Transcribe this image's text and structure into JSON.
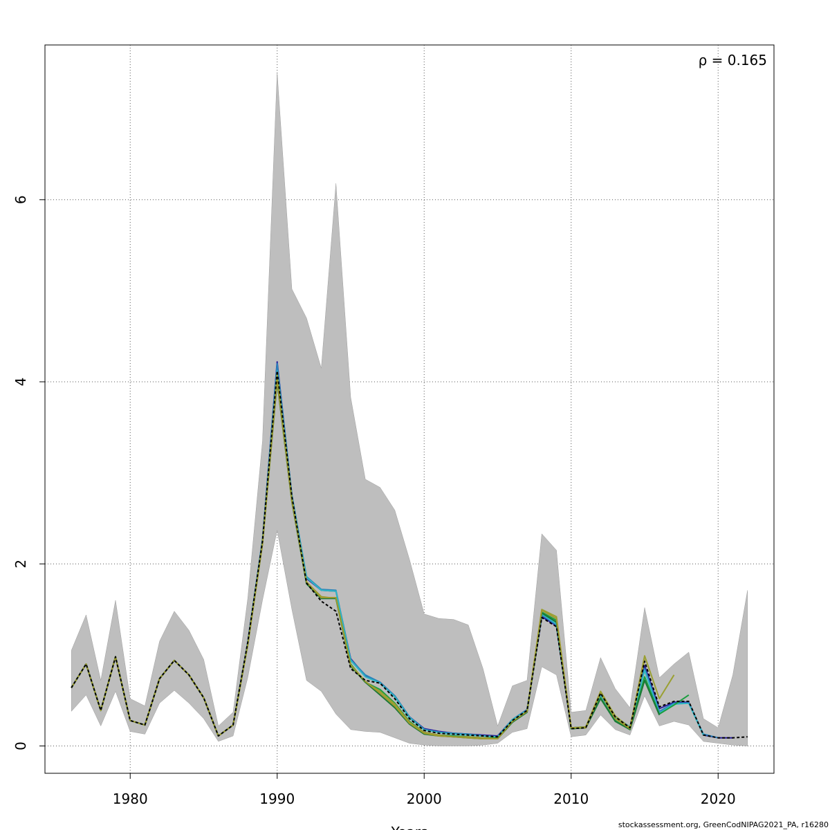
{
  "chart_data": {
    "type": "line",
    "xlabel": "Years",
    "ylabel": "",
    "xlim": [
      1974.2,
      2023.8
    ],
    "ylim": [
      -0.3,
      7.7
    ],
    "x_ticks": [
      1980,
      1990,
      2000,
      2010,
      2020
    ],
    "y_ticks": [
      0,
      2,
      4,
      6
    ],
    "grid": true,
    "annotation": "ρ = 0.165",
    "credit": "stockassessment.org, GreenCodNIPAG2021_PA, r16280",
    "colors": {
      "band": "#bebebe",
      "band_line": "#9e9e9e",
      "peel_1": "#2a1fa0",
      "peel_2": "#2b83ba",
      "peel_3": "#2fb7c4",
      "peel_4": "#1a9e3f",
      "peel_5": "#9aa032",
      "peel_6": "#1b7837",
      "peel_7": "#a09a2e",
      "final": "#000000"
    },
    "confidence_band": {
      "years": [
        1976,
        1977,
        1978,
        1979,
        1980,
        1981,
        1982,
        1983,
        1984,
        1985,
        1986,
        1987,
        1988,
        1989,
        1990,
        1991,
        1992,
        1993,
        1994,
        1995,
        1996,
        1997,
        1998,
        1999,
        2000,
        2001,
        2002,
        2003,
        2004,
        2005,
        2006,
        2007,
        2008,
        2009,
        2010,
        2011,
        2012,
        2013,
        2014,
        2015,
        2016,
        2017,
        2018,
        2019,
        2020,
        2021,
        2022
      ],
      "upper": [
        1.05,
        1.44,
        0.72,
        1.6,
        0.52,
        0.44,
        1.15,
        1.48,
        1.27,
        0.95,
        0.22,
        0.37,
        1.62,
        3.35,
        7.4,
        5.02,
        4.7,
        4.15,
        6.18,
        3.83,
        2.93,
        2.84,
        2.59,
        2.05,
        1.45,
        1.4,
        1.39,
        1.33,
        0.85,
        0.22,
        0.66,
        0.72,
        2.33,
        2.15,
        0.37,
        0.39,
        0.97,
        0.63,
        0.42,
        1.52,
        0.75,
        0.9,
        1.03,
        0.3,
        0.2,
        0.78,
        1.71
      ],
      "lower": [
        0.38,
        0.56,
        0.22,
        0.6,
        0.16,
        0.13,
        0.47,
        0.61,
        0.47,
        0.3,
        0.05,
        0.11,
        0.75,
        1.6,
        2.37,
        1.5,
        0.72,
        0.6,
        0.35,
        0.18,
        0.16,
        0.15,
        0.09,
        0.03,
        0.01,
        0.0,
        0.0,
        0.0,
        0.01,
        0.03,
        0.15,
        0.19,
        0.87,
        0.78,
        0.1,
        0.12,
        0.34,
        0.18,
        0.12,
        0.55,
        0.22,
        0.27,
        0.23,
        0.05,
        0.03,
        0.01,
        0.0
      ]
    },
    "series": [
      {
        "name": "",
        "style": "solid",
        "color": "peel_1",
        "x": [
          1976,
          1977,
          1978,
          1979,
          1980,
          1981,
          1982,
          1983,
          1984,
          1985,
          1986,
          1987,
          1988,
          1989,
          1990,
          1991,
          1992,
          1993,
          1994,
          1995,
          1996,
          1997,
          1998,
          1999,
          2000,
          2001,
          2002,
          2003,
          2004,
          2005,
          2006,
          2007,
          2008,
          2009,
          2010,
          2011,
          2012,
          2013,
          2014,
          2015,
          2016,
          2017,
          2018,
          2019,
          2020,
          2021
        ],
        "y": [
          0.64,
          0.9,
          0.39,
          0.98,
          0.28,
          0.23,
          0.74,
          0.94,
          0.78,
          0.53,
          0.11,
          0.23,
          1.14,
          2.26,
          4.22,
          2.75,
          1.84,
          1.71,
          1.7,
          0.96,
          0.77,
          0.7,
          0.55,
          0.32,
          0.19,
          0.16,
          0.14,
          0.13,
          0.12,
          0.11,
          0.29,
          0.4,
          1.42,
          1.32,
          0.2,
          0.21,
          0.56,
          0.31,
          0.21,
          0.88,
          0.41,
          0.48,
          0.48,
          0.12,
          0.09,
          0.09
        ]
      },
      {
        "name": "",
        "style": "solid",
        "color": "peel_2",
        "x": [
          1976,
          1977,
          1978,
          1979,
          1980,
          1981,
          1982,
          1983,
          1984,
          1985,
          1986,
          1987,
          1988,
          1989,
          1990,
          1991,
          1992,
          1993,
          1994,
          1995,
          1996,
          1997,
          1998,
          1999,
          2000,
          2001,
          2002,
          2003,
          2004,
          2005,
          2006,
          2007,
          2008,
          2009,
          2010,
          2011,
          2012,
          2013,
          2014,
          2015,
          2016,
          2017,
          2018,
          2019,
          2020
        ],
        "y": [
          0.64,
          0.9,
          0.39,
          0.98,
          0.28,
          0.23,
          0.74,
          0.94,
          0.78,
          0.53,
          0.11,
          0.23,
          1.14,
          2.27,
          4.2,
          2.76,
          1.86,
          1.72,
          1.71,
          0.95,
          0.78,
          0.7,
          0.55,
          0.32,
          0.18,
          0.15,
          0.14,
          0.13,
          0.11,
          0.1,
          0.29,
          0.4,
          1.44,
          1.33,
          0.2,
          0.21,
          0.57,
          0.32,
          0.21,
          0.85,
          0.38,
          0.47,
          0.47,
          0.13,
          0.09
        ]
      },
      {
        "name": "",
        "style": "solid",
        "color": "peel_3",
        "x": [
          1976,
          1977,
          1978,
          1979,
          1980,
          1981,
          1982,
          1983,
          1984,
          1985,
          1986,
          1987,
          1988,
          1989,
          1990,
          1991,
          1992,
          1993,
          1994,
          1995,
          1996,
          1997,
          1998,
          1999,
          2000,
          2001,
          2002,
          2003,
          2004,
          2005,
          2006,
          2007,
          2008,
          2009,
          2010,
          2011,
          2012,
          2013,
          2014,
          2015,
          2016,
          2017,
          2018,
          2019
        ],
        "y": [
          0.64,
          0.9,
          0.39,
          0.98,
          0.28,
          0.23,
          0.74,
          0.94,
          0.78,
          0.53,
          0.11,
          0.23,
          1.13,
          2.25,
          4.12,
          2.74,
          1.85,
          1.71,
          1.7,
          0.94,
          0.76,
          0.69,
          0.54,
          0.31,
          0.18,
          0.15,
          0.13,
          0.12,
          0.11,
          0.1,
          0.29,
          0.39,
          1.45,
          1.34,
          0.2,
          0.21,
          0.56,
          0.31,
          0.21,
          0.83,
          0.36,
          0.46,
          0.47,
          0.12
        ]
      },
      {
        "name": "",
        "style": "solid",
        "color": "peel_4",
        "x": [
          1976,
          1977,
          1978,
          1979,
          1980,
          1981,
          1982,
          1983,
          1984,
          1985,
          1986,
          1987,
          1988,
          1989,
          1990,
          1991,
          1992,
          1993,
          1994,
          1995,
          1996,
          1997,
          1998,
          1999,
          2000,
          2001,
          2002,
          2003,
          2004,
          2005,
          2006,
          2007,
          2008,
          2009,
          2010,
          2011,
          2012,
          2013,
          2014,
          2015,
          2016,
          2017,
          2018
        ],
        "y": [
          0.64,
          0.9,
          0.39,
          0.98,
          0.28,
          0.23,
          0.74,
          0.94,
          0.78,
          0.53,
          0.11,
          0.23,
          1.12,
          2.24,
          4.05,
          2.7,
          1.79,
          1.63,
          1.63,
          0.9,
          0.7,
          0.62,
          0.47,
          0.27,
          0.15,
          0.12,
          0.11,
          0.1,
          0.09,
          0.09,
          0.27,
          0.38,
          1.47,
          1.38,
          0.19,
          0.2,
          0.53,
          0.28,
          0.18,
          0.76,
          0.35,
          0.45,
          0.56
        ]
      },
      {
        "name": "",
        "style": "solid",
        "color": "peel_5",
        "x": [
          1976,
          1977,
          1978,
          1979,
          1980,
          1981,
          1982,
          1983,
          1984,
          1985,
          1986,
          1987,
          1988,
          1989,
          1990,
          1991,
          1992,
          1993,
          1994,
          1995,
          1996,
          1997,
          1998,
          1999,
          2000,
          2001,
          2002,
          2003,
          2004,
          2005,
          2006,
          2007,
          2008,
          2009,
          2010,
          2011,
          2012,
          2013,
          2014,
          2015,
          2016,
          2017
        ],
        "y": [
          0.64,
          0.9,
          0.39,
          0.98,
          0.28,
          0.23,
          0.74,
          0.94,
          0.78,
          0.53,
          0.11,
          0.23,
          1.12,
          2.24,
          4.08,
          2.72,
          1.8,
          1.64,
          1.62,
          0.88,
          0.7,
          0.6,
          0.46,
          0.26,
          0.15,
          0.12,
          0.1,
          0.1,
          0.09,
          0.08,
          0.27,
          0.38,
          1.5,
          1.42,
          0.2,
          0.21,
          0.6,
          0.33,
          0.2,
          0.99,
          0.52,
          0.78
        ]
      },
      {
        "name": "",
        "style": "solid",
        "color": "peel_6",
        "x": [
          1976,
          1977,
          1978,
          1979,
          1980,
          1981,
          1982,
          1983,
          1984,
          1985,
          1986,
          1987,
          1988,
          1989,
          1990,
          1991,
          1992,
          1993,
          1994,
          1995,
          1996,
          1997,
          1998,
          1999,
          2000,
          2001,
          2002,
          2003,
          2004,
          2005,
          2006,
          2007,
          2008,
          2009,
          2010,
          2011,
          2012,
          2013,
          2014,
          2015,
          2016
        ],
        "y": [
          0.64,
          0.9,
          0.39,
          0.98,
          0.28,
          0.23,
          0.74,
          0.94,
          0.78,
          0.53,
          0.11,
          0.23,
          1.11,
          2.22,
          4.0,
          2.68,
          1.78,
          1.62,
          1.62,
          0.88,
          0.7,
          0.56,
          0.42,
          0.24,
          0.13,
          0.11,
          0.1,
          0.09,
          0.08,
          0.08,
          0.26,
          0.37,
          1.46,
          1.36,
          0.19,
          0.2,
          0.52,
          0.27,
          0.18,
          0.72,
          0.34
        ]
      },
      {
        "name": "",
        "style": "solid",
        "color": "peel_7",
        "x": [
          1976,
          1977,
          1978,
          1979,
          1980,
          1981,
          1982,
          1983,
          1984,
          1985,
          1986,
          1987,
          1988,
          1989,
          1990,
          1991,
          1992,
          1993,
          1994,
          1995,
          1996,
          1997,
          1998,
          1999,
          2000,
          2001,
          2002,
          2003,
          2004,
          2005,
          2006,
          2007,
          2008,
          2009,
          2010,
          2011,
          2012,
          2013,
          2014,
          2015
        ],
        "y": [
          0.64,
          0.9,
          0.39,
          0.98,
          0.28,
          0.23,
          0.74,
          0.94,
          0.78,
          0.53,
          0.11,
          0.23,
          1.11,
          2.22,
          4.02,
          2.69,
          1.8,
          1.63,
          1.63,
          0.89,
          0.71,
          0.58,
          0.44,
          0.25,
          0.14,
          0.11,
          0.1,
          0.09,
          0.08,
          0.08,
          0.27,
          0.38,
          1.49,
          1.4,
          0.2,
          0.2,
          0.58,
          0.3,
          0.19,
          0.95
        ]
      },
      {
        "name": "",
        "style": "dashed",
        "color": "final",
        "x": [
          1976,
          1977,
          1978,
          1979,
          1980,
          1981,
          1982,
          1983,
          1984,
          1985,
          1986,
          1987,
          1988,
          1989,
          1990,
          1991,
          1992,
          1993,
          1994,
          1995,
          1996,
          1997,
          1998,
          1999,
          2000,
          2001,
          2002,
          2003,
          2004,
          2005,
          2006,
          2007,
          2008,
          2009,
          2010,
          2011,
          2012,
          2013,
          2014,
          2015,
          2016,
          2017,
          2018,
          2019,
          2020,
          2021,
          2022
        ],
        "y": [
          0.64,
          0.9,
          0.39,
          0.98,
          0.28,
          0.23,
          0.74,
          0.94,
          0.78,
          0.53,
          0.11,
          0.23,
          1.14,
          2.25,
          4.12,
          2.74,
          1.79,
          1.59,
          1.48,
          0.85,
          0.72,
          0.69,
          0.52,
          0.3,
          0.17,
          0.14,
          0.13,
          0.12,
          0.11,
          0.1,
          0.28,
          0.39,
          1.41,
          1.31,
          0.19,
          0.2,
          0.58,
          0.32,
          0.2,
          0.93,
          0.43,
          0.49,
          0.49,
          0.12,
          0.09,
          0.09,
          0.1
        ]
      }
    ]
  }
}
